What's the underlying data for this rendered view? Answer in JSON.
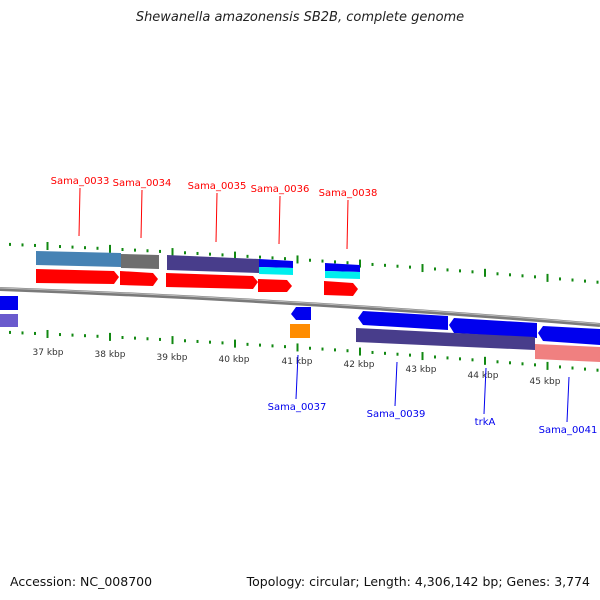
{
  "title": "Shewanella amazonensis SB2B, complete genome",
  "accession": "Accession: NC_008700",
  "summary": "Topology: circular; Length: 4,306,142 bp; Genes: 3,774",
  "kbp_labels": [
    "37 kbp",
    "38 kbp",
    "39 kbp",
    "40 kbp",
    "41 kbp",
    "42 kbp",
    "43 kbp",
    "44 kbp",
    "45 kbp"
  ],
  "forward_genes": [
    "Sama_0033",
    "Sama_0034",
    "Sama_0035",
    "Sama_0036",
    "Sama_0038"
  ],
  "reverse_genes": [
    "Sama_0037",
    "Sama_0039",
    "trkA",
    "Sama_0041"
  ],
  "colors": {
    "forward_label": "#ff0000",
    "reverse_label": "#0000ee",
    "cds_forward": "#ff0000",
    "cds_reverse": "#0000ee",
    "tick": "#118811",
    "backbone": "#888888"
  }
}
